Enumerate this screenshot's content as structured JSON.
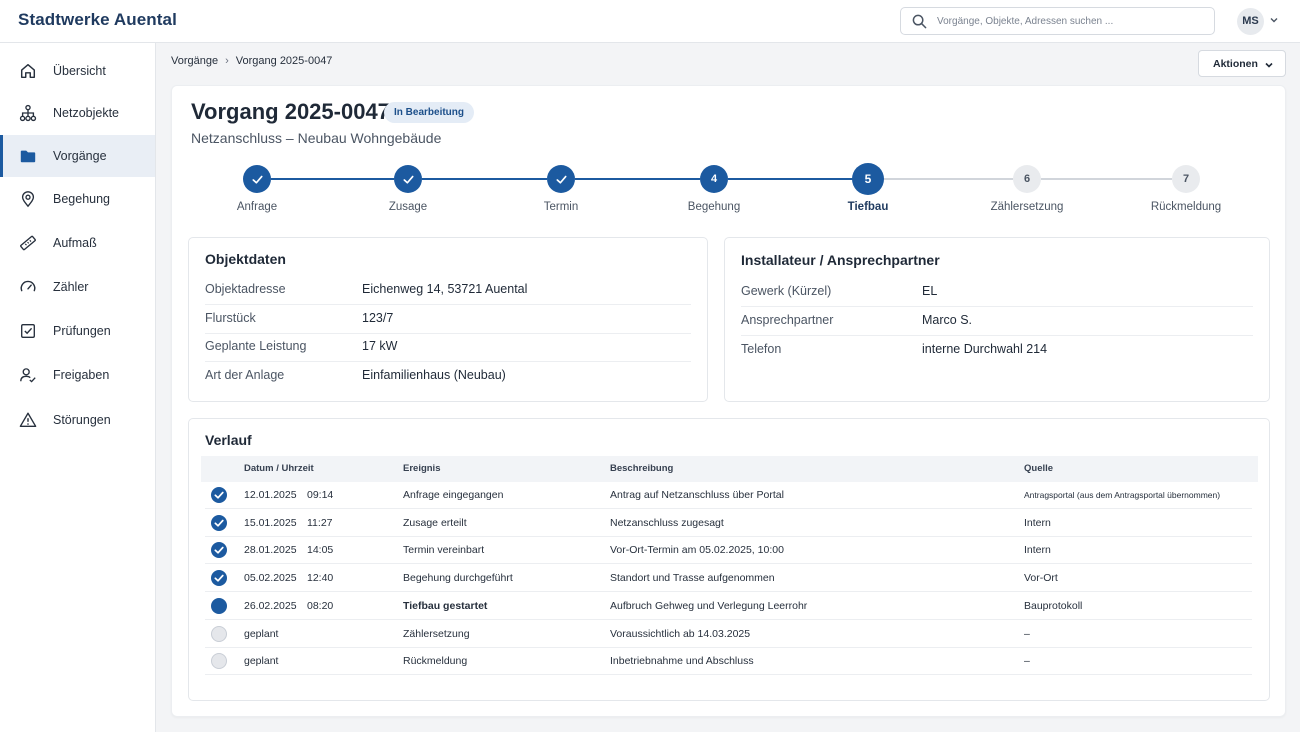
{
  "header": {
    "brand": "Stadtwerke Auental",
    "search_placeholder": "Vorgänge, Objekte, Adressen suchen ...",
    "user_initials": "MS"
  },
  "sidebar": {
    "items": [
      {
        "label": "Übersicht",
        "icon": "home-icon"
      },
      {
        "label": "Netzobjekte",
        "icon": "network-icon"
      },
      {
        "label": "Vorgänge",
        "icon": "folder-icon",
        "active": true
      },
      {
        "label": "Begehung",
        "icon": "location-pin-icon"
      },
      {
        "label": "Aufmaß",
        "icon": "ruler-icon"
      },
      {
        "label": "Zähler",
        "icon": "gauge-icon"
      },
      {
        "label": "Prüfungen",
        "icon": "checkbox-icon"
      },
      {
        "label": "Freigaben",
        "icon": "user-check-icon"
      },
      {
        "label": "Störungen",
        "icon": "warning-icon"
      }
    ]
  },
  "breadcrumb": {
    "parent": "Vorgänge",
    "current": "Vorgang 2025-0047"
  },
  "actions_label": "Aktionen",
  "vorgang": {
    "title": "Vorgang 2025-0047",
    "status": "In Bearbeitung",
    "subtitle": "Netzanschluss – Neubau Wohngebäude"
  },
  "stepper": {
    "steps": [
      {
        "number": "1",
        "label": "Anfrage",
        "state": "done"
      },
      {
        "number": "2",
        "label": "Zusage",
        "state": "done"
      },
      {
        "number": "3",
        "label": "Termin",
        "state": "done"
      },
      {
        "number": "4",
        "label": "Begehung",
        "state": "done"
      },
      {
        "number": "5",
        "label": "Tiefbau",
        "state": "current"
      },
      {
        "number": "6",
        "label": "Zählersetzung",
        "state": "planned"
      },
      {
        "number": "7",
        "label": "Rückmeldung",
        "state": "planned"
      }
    ]
  },
  "objektdaten": {
    "title": "Objektdaten",
    "rows": [
      {
        "key": "Objektadresse",
        "value": "Eichenweg 14, 53721 Auental"
      },
      {
        "key": "Flurstück",
        "value": "123/7"
      },
      {
        "key": "Geplante Leistung",
        "value": "17 kW"
      },
      {
        "key": "Art der Anlage",
        "value": "Einfamilienhaus (Neubau)"
      }
    ]
  },
  "installateur": {
    "title": "Installateur / Ansprechpartner",
    "rows": [
      {
        "key": "Gewerk (Kürzel)",
        "value": "EL"
      },
      {
        "key": "Ansprechpartner",
        "value": "Marco S."
      },
      {
        "key": "Telefon",
        "value": "interne Durchwahl 214"
      }
    ]
  },
  "verlauf": {
    "title": "Verlauf",
    "columns": [
      "Datum / Uhrzeit",
      "Ereignis",
      "Beschreibung",
      "Quelle"
    ],
    "rows": [
      {
        "date": "12.01.2025",
        "time": "09:14",
        "event": "Anfrage eingegangen",
        "description": "Antrag auf Netzanschluss über Portal",
        "source": "Antragsportal (aus dem Antragsportal übernommen)",
        "state": "done"
      },
      {
        "date": "15.01.2025",
        "time": "11:27",
        "event": "Zusage erteilt",
        "description": "Netzanschluss zugesagt",
        "source": "Intern",
        "state": "done"
      },
      {
        "date": "28.01.2025",
        "time": "14:05",
        "event": "Termin vereinbart",
        "description": "Vor-Ort-Termin am 05.02.2025, 10:00",
        "source": "Intern",
        "state": "done"
      },
      {
        "date": "05.02.2025",
        "time": "12:40",
        "event": "Begehung durchgeführt",
        "description": "Standort und Trasse aufgenommen",
        "source": "Vor-Ort",
        "state": "done"
      },
      {
        "date": "26.02.2025",
        "time": "08:20",
        "event": "Tiefbau gestartet",
        "description": "Aufbruch Gehweg und Verlegung Leerrohr",
        "source": "Bauprotokoll",
        "state": "current"
      },
      {
        "date": "geplant",
        "time": "",
        "event": "Zählersetzung",
        "description": "Voraussichtlich ab 14.03.2025",
        "source": "–",
        "state": "planned"
      },
      {
        "date": "geplant",
        "time": "",
        "event": "Rückmeldung",
        "description": "Inbetriebnahme und Abschluss",
        "source": "–",
        "state": "planned"
      }
    ]
  },
  "colors": {
    "accent": "#1c5aa0",
    "planned": "#e5e7eb",
    "badge_bg": "#e4ecf6"
  }
}
